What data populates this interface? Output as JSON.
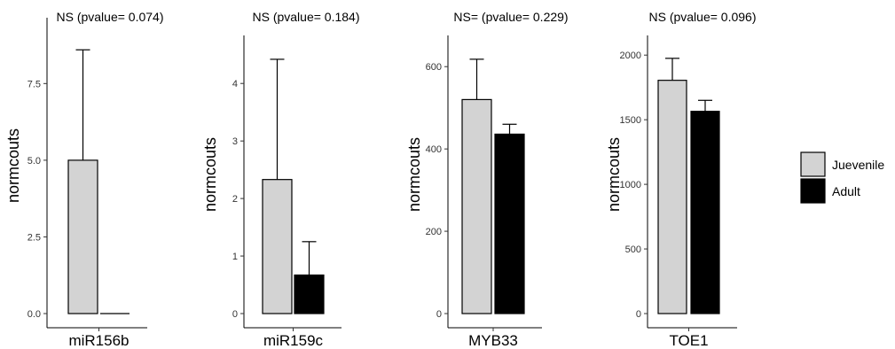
{
  "chart_data": [
    {
      "type": "bar",
      "title": "NS (pvalue= 0.074)",
      "category": "miR156b",
      "ylabel": "normcouts",
      "ylim": [
        0,
        9.3
      ],
      "yticks": [
        "0.0",
        "2.5",
        "5.0",
        "7.5"
      ],
      "series": [
        {
          "name": "Juevenile",
          "value": 5.0,
          "error_upper": 8.6
        },
        {
          "name": "Adult",
          "value": 0.0,
          "error_upper": 0.0
        }
      ]
    },
    {
      "type": "bar",
      "title": "NS (pvalue= 0.184)",
      "category": "miR159c",
      "ylabel": "normcouts",
      "ylim": [
        0,
        4.65
      ],
      "yticks": [
        "0",
        "1",
        "2",
        "3",
        "4"
      ],
      "series": [
        {
          "name": "Juevenile",
          "value": 2.33,
          "error_upper": 4.42
        },
        {
          "name": "Adult",
          "value": 0.67,
          "error_upper": 1.25
        }
      ]
    },
    {
      "type": "bar",
      "title": "NS= (pvalue= 0.229)",
      "category": "MYB33",
      "ylabel": "normcouts",
      "ylim": [
        0,
        650
      ],
      "yticks": [
        "0",
        "200",
        "400",
        "600"
      ],
      "series": [
        {
          "name": "Juevenile",
          "value": 520,
          "error_upper": 618
        },
        {
          "name": "Adult",
          "value": 436,
          "error_upper": 460
        }
      ]
    },
    {
      "type": "bar",
      "title": "NS (pvalue= 0.096)",
      "category": "TOE1",
      "ylabel": "normcouts",
      "ylim": [
        0,
        2070
      ],
      "yticks": [
        "0",
        "500",
        "1000",
        "1500",
        "2000"
      ],
      "series": [
        {
          "name": "Juevenile",
          "value": 1805,
          "error_upper": 1975
        },
        {
          "name": "Adult",
          "value": 1565,
          "error_upper": 1650
        }
      ]
    }
  ],
  "legend": {
    "placement": "right",
    "items": [
      {
        "label": "Juevenile",
        "color": "#d3d3d3"
      },
      {
        "label": "Adult",
        "color": "#000000"
      }
    ]
  }
}
